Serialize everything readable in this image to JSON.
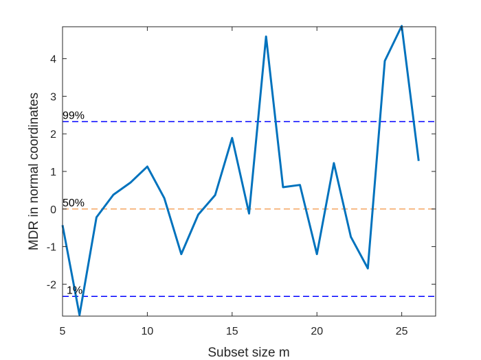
{
  "chart_data": {
    "type": "line",
    "title": "",
    "xlabel": "Subset size m",
    "ylabel": "MDR in normal coordinates",
    "xlim": [
      5,
      27
    ],
    "ylim": [
      -2.85,
      4.85
    ],
    "xticks": [
      5,
      10,
      15,
      20,
      25
    ],
    "yticks": [
      -2,
      -1,
      0,
      1,
      2,
      3,
      4
    ],
    "grid": false,
    "series": [
      {
        "x": [
          5,
          6,
          7,
          8,
          9,
          10,
          11,
          12,
          13,
          14,
          15,
          16,
          17,
          18,
          19,
          20,
          21,
          22,
          23,
          24,
          25,
          26
        ],
        "y": [
          -0.43,
          -2.82,
          -0.22,
          0.38,
          0.7,
          1.13,
          0.29,
          -1.2,
          -0.15,
          0.37,
          1.89,
          -0.12,
          4.59,
          0.58,
          0.64,
          -1.2,
          1.22,
          -0.74,
          -1.58,
          3.94,
          4.87,
          1.28
        ],
        "color": "#0072BD"
      }
    ],
    "reference_lines": [
      {
        "label": "99%",
        "y": 2.326,
        "color": "#0000FF"
      },
      {
        "label": "50%",
        "y": 0,
        "color": "#F4A460"
      },
      {
        "label": "1%",
        "y": -2.326,
        "color": "#0000FF"
      }
    ]
  }
}
